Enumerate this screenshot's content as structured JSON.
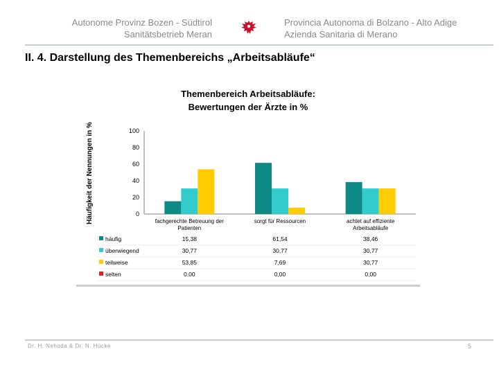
{
  "header": {
    "left_line1": "Autonome Provinz Bozen -  Südtirol",
    "left_line2": "Sanitätsbetrieb Meran",
    "right_line1": "Provincia Autonoma di Bolzano - Alto Adige",
    "right_line2": "Azienda Sanitaria di Merano",
    "emblem_icon": "eagle-emblem-icon"
  },
  "section_title": "II. 4. Darstellung des Themenbereichs „Arbeitsabläufe“",
  "footer": {
    "authors": "Dr. H. Nehoda & Dr. N. Hücke",
    "page_number": "5"
  },
  "chart_data": {
    "type": "bar",
    "title": "Themenbereich Arbeitsabläufe:",
    "subtitle": "Bewertungen der Ärzte in %",
    "ylabel": "Häufigkeit der Nennungen in %",
    "xlabel": "",
    "ylim": [
      0,
      100
    ],
    "yticks": [
      "0",
      "20",
      "40",
      "60",
      "80",
      "100"
    ],
    "grid": false,
    "legend_position": "data-table-left",
    "categories": [
      [
        "fachgerechte Betreuung der",
        "Patienten"
      ],
      [
        "sorgt für Ressourcen"
      ],
      [
        "achtet auf effiziente",
        "Arbeitsabläufe"
      ]
    ],
    "series": [
      {
        "name": "häufig",
        "color": "#0e8a86",
        "values": [
          15.38,
          61.54,
          38.46
        ],
        "labels": [
          "15,38",
          "61,54",
          "38,46"
        ]
      },
      {
        "name": "überwiegend",
        "color": "#33cccc",
        "values": [
          30.77,
          30.77,
          30.77
        ],
        "labels": [
          "30,77",
          "30,77",
          "30,77"
        ]
      },
      {
        "name": "teilweise",
        "color": "#ffcc00",
        "values": [
          53.85,
          7.69,
          30.77
        ],
        "labels": [
          "53,85",
          "7,69",
          "30,77"
        ]
      },
      {
        "name": "selten",
        "color": "#e02020",
        "values": [
          0.0,
          0.0,
          0.0
        ],
        "labels": [
          "0,00",
          "0,00",
          "0,00"
        ]
      }
    ]
  }
}
